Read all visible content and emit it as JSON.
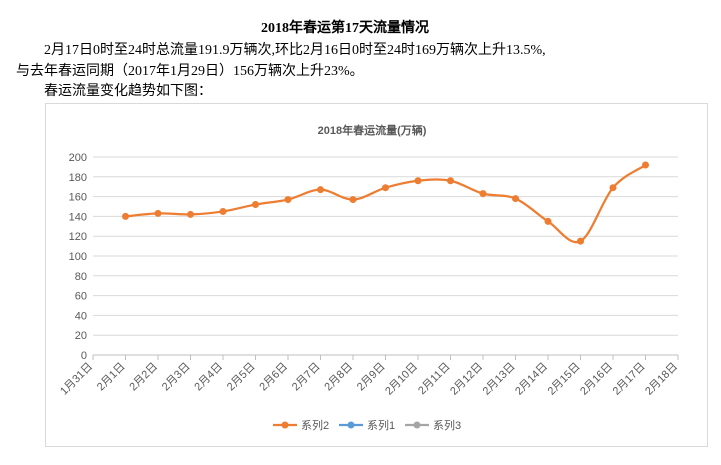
{
  "document": {
    "title": "2018年春运第17天流量情况",
    "paragraph_lines": [
      "2月17日0时至24时总流量191.9万辆次,环比2月16日0时至24时169万辆次上升13.5%,",
      "与去年春运同期（2017年1月29日）156万辆次上升23%。",
      "春运流量变化趋势如下图："
    ]
  },
  "chart_data": {
    "type": "line",
    "title": "2018年春运流量(万辆)",
    "categories": [
      "1月31日",
      "2月1日",
      "2月2日",
      "2月3日",
      "2月4日",
      "2月5日",
      "2月6日",
      "2月7日",
      "2月8日",
      "2月9日",
      "2月10日",
      "2月11日",
      "2月12日",
      "2月13日",
      "2月14日",
      "2月15日",
      "2月16日",
      "2月17日",
      "2月18日"
    ],
    "series": [
      {
        "name": "系列2",
        "color": "#ed7d31",
        "values": [
          null,
          140,
          143,
          142,
          145,
          152,
          157,
          167,
          157,
          169,
          176,
          176,
          163,
          158,
          135,
          115,
          169,
          191.9,
          null
        ]
      },
      {
        "name": "系列1",
        "color": "#5b9bd5",
        "values": [
          null,
          null,
          null,
          null,
          null,
          null,
          null,
          null,
          null,
          null,
          null,
          null,
          null,
          null,
          null,
          null,
          null,
          null,
          null
        ]
      },
      {
        "name": "系列3",
        "color": "#a5a5a5",
        "values": [
          null,
          null,
          null,
          null,
          null,
          null,
          null,
          null,
          null,
          null,
          null,
          null,
          null,
          null,
          null,
          null,
          null,
          null,
          null
        ]
      }
    ],
    "ylim": [
      0,
      200
    ],
    "yticks": [
      0,
      20,
      40,
      60,
      80,
      100,
      120,
      140,
      160,
      180,
      200
    ],
    "grid": true,
    "smooth": true,
    "legend": "bottom"
  }
}
